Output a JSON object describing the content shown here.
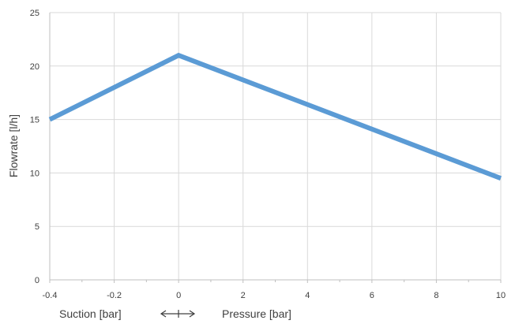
{
  "chart_data": {
    "type": "line",
    "title": "",
    "ylabel": "Flowrate [l/h]",
    "xlabel_left": "Suction [bar]",
    "xlabel_right": "Pressure [bar]",
    "x_ticks": [
      "-0.4",
      "-0.2",
      "0",
      "2",
      "4",
      "6",
      "8",
      "10"
    ],
    "x_ticks_note": "piecewise axis: suction region -0.4..0 and pressure region 0..10 share equal tick spacing",
    "ylim": [
      0,
      25
    ],
    "y_ticks": [
      "0",
      "5",
      "10",
      "15",
      "20",
      "25"
    ],
    "grid": true,
    "series": [
      {
        "color": "#5b9bd5",
        "x": [
          -0.4,
          0,
          10
        ],
        "y": [
          15,
          21,
          9.5
        ]
      }
    ]
  }
}
